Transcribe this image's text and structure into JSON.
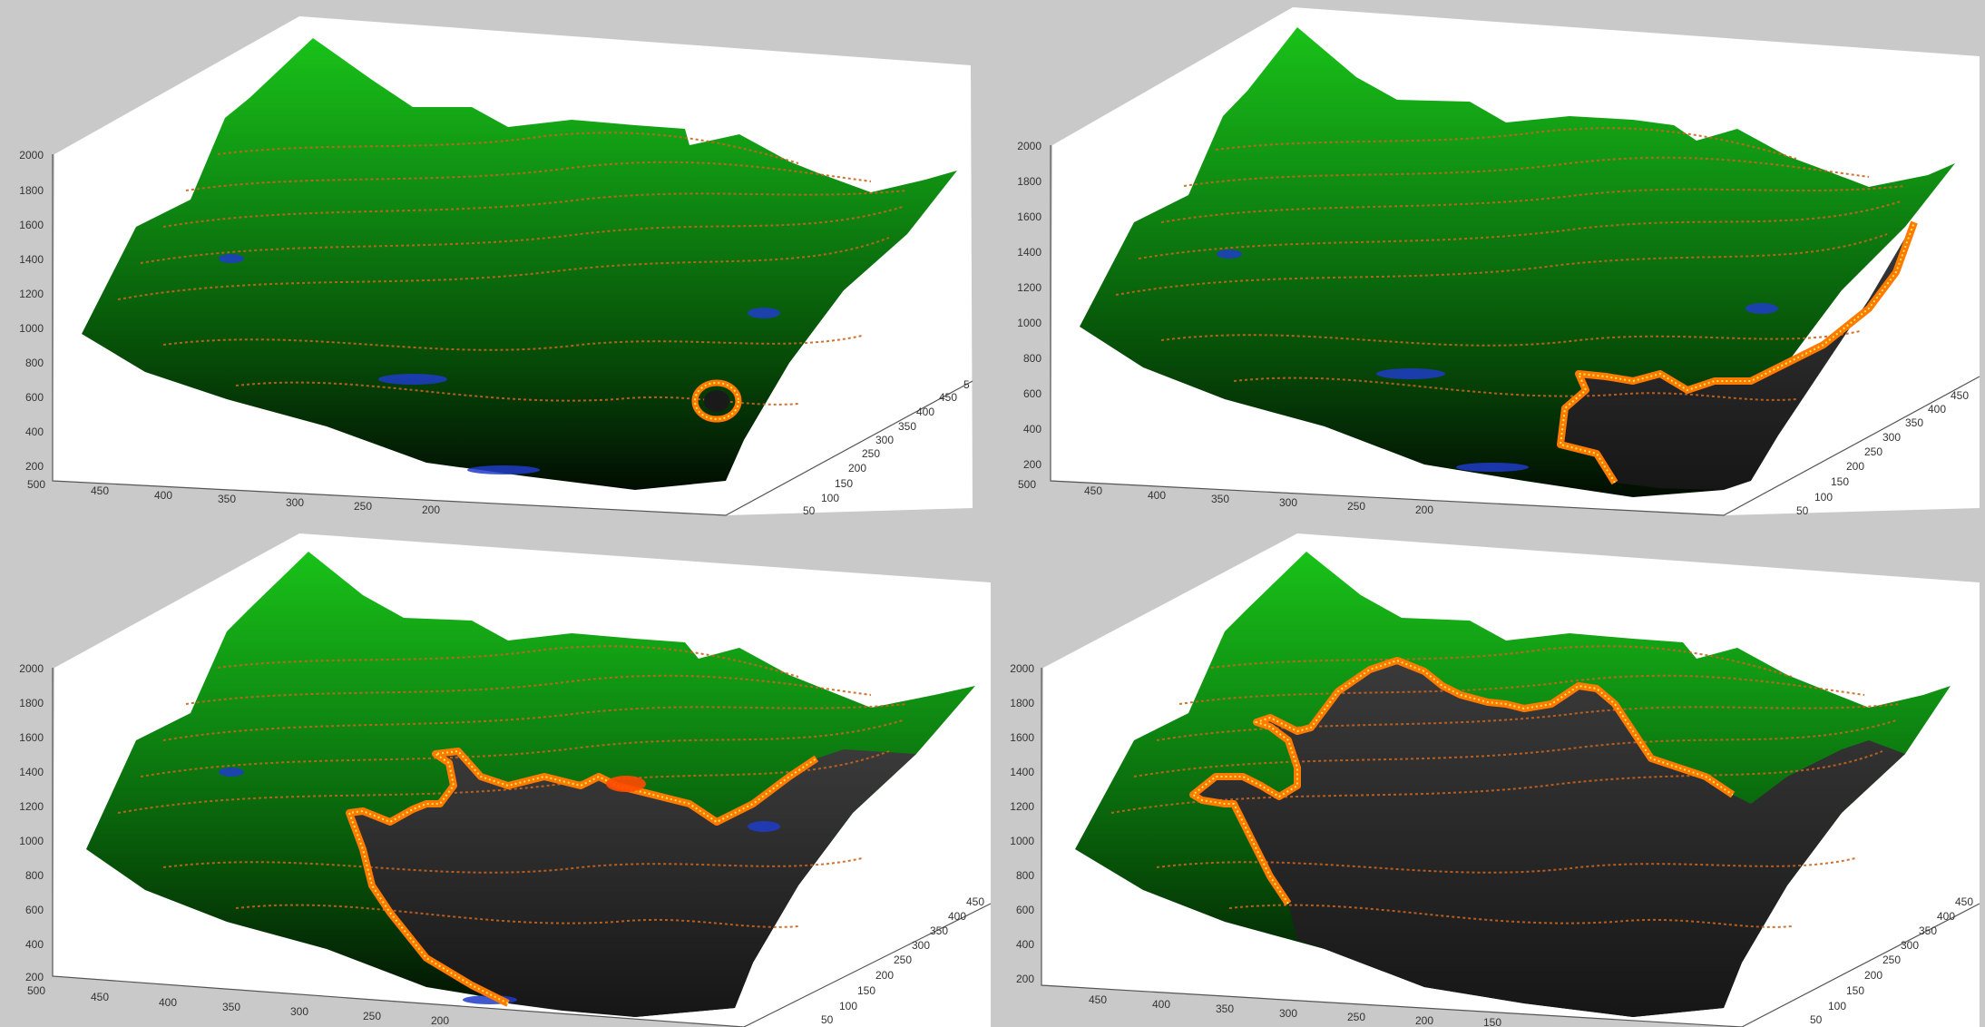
{
  "figure": {
    "panel_count": 4,
    "colors": {
      "background": "#c9c9c9",
      "axes_wall": "#ffffff",
      "terrain_light": "#19c219",
      "terrain_dark": "#020d02",
      "burned": "#2c2c2c",
      "contour": "#c8641e",
      "fire_front": "#ff7a00",
      "fire_core": "#ffe94a",
      "water": "#1e3cc8"
    },
    "panels": [
      {
        "z_ticks": [
          "2000",
          "1800",
          "1600",
          "1400",
          "1200",
          "1000",
          "800",
          "600",
          "400",
          "200"
        ],
        "x_ticks": [
          "500",
          "450",
          "400",
          "350",
          "300",
          "250",
          "200"
        ],
        "y_ticks": [
          "50",
          "100",
          "150",
          "200",
          "250",
          "300",
          "350",
          "400",
          "450",
          "5"
        ]
      },
      {
        "z_ticks": [
          "2000",
          "1800",
          "1600",
          "1400",
          "1200",
          "1000",
          "800",
          "600",
          "400",
          "200"
        ],
        "x_ticks": [
          "500",
          "450",
          "400",
          "350",
          "300",
          "250",
          "200"
        ],
        "y_ticks": [
          "50",
          "100",
          "150",
          "200",
          "250",
          "300",
          "350",
          "400",
          "450"
        ]
      },
      {
        "z_ticks": [
          "2000",
          "1800",
          "1600",
          "1400",
          "1200",
          "1000",
          "800",
          "600",
          "400",
          "200"
        ],
        "x_ticks": [
          "500",
          "450",
          "400",
          "350",
          "300",
          "250",
          "200"
        ],
        "y_ticks": [
          "50",
          "100",
          "150",
          "200",
          "250",
          "300",
          "350",
          "400",
          "450"
        ]
      },
      {
        "z_ticks": [
          "2000",
          "1800",
          "1600",
          "1400",
          "1200",
          "1000",
          "800",
          "600",
          "400",
          "200"
        ],
        "x_ticks": [
          "450",
          "400",
          "350",
          "300",
          "250",
          "200",
          "150"
        ],
        "y_ticks": [
          "50",
          "100",
          "150",
          "200",
          "250",
          "300",
          "350",
          "400",
          "450"
        ]
      }
    ]
  }
}
